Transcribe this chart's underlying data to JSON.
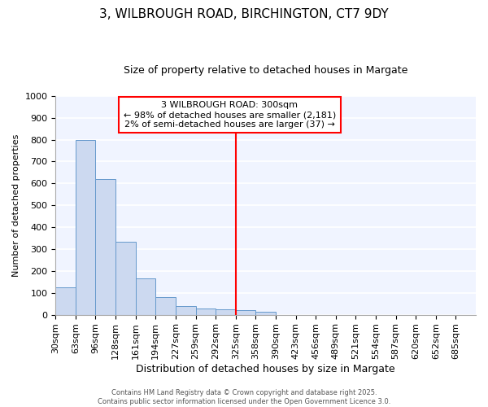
{
  "title1": "3, WILBROUGH ROAD, BIRCHINGTON, CT7 9DY",
  "title2": "Size of property relative to detached houses in Margate",
  "xlabel": "Distribution of detached houses by size in Margate",
  "ylabel": "Number of detached properties",
  "bar_labels": [
    "30sqm",
    "63sqm",
    "96sqm",
    "128sqm",
    "161sqm",
    "194sqm",
    "227sqm",
    "259sqm",
    "292sqm",
    "325sqm",
    "358sqm",
    "390sqm",
    "423sqm",
    "456sqm",
    "489sqm",
    "521sqm",
    "554sqm",
    "587sqm",
    "620sqm",
    "652sqm",
    "685sqm"
  ],
  "bar_values": [
    125,
    800,
    620,
    335,
    165,
    82,
    38,
    28,
    25,
    20,
    12,
    0,
    0,
    0,
    0,
    0,
    0,
    0,
    0,
    0,
    0
  ],
  "bar_color": "#ccd9f0",
  "bar_edgecolor": "#6699cc",
  "vline_label_idx": 8,
  "vline_color": "red",
  "ylim": [
    0,
    1000
  ],
  "yticks": [
    0,
    100,
    200,
    300,
    400,
    500,
    600,
    700,
    800,
    900,
    1000
  ],
  "annotation_title": "3 WILBROUGH ROAD: 300sqm",
  "annotation_line1": "← 98% of detached houses are smaller (2,181)",
  "annotation_line2": "2% of semi-detached houses are larger (37) →",
  "annotation_box_facecolor": "white",
  "annotation_box_edgecolor": "red",
  "footer_line1": "Contains HM Land Registry data © Crown copyright and database right 2025.",
  "footer_line2": "Contains public sector information licensed under the Open Government Licence 3.0.",
  "plot_bg_color": "#f0f4ff",
  "fig_bg_color": "white",
  "grid_color": "white",
  "title1_fontsize": 11,
  "title2_fontsize": 9,
  "ylabel_fontsize": 8,
  "xlabel_fontsize": 9,
  "tick_fontsize": 8,
  "annotation_fontsize": 8,
  "footer_fontsize": 6
}
